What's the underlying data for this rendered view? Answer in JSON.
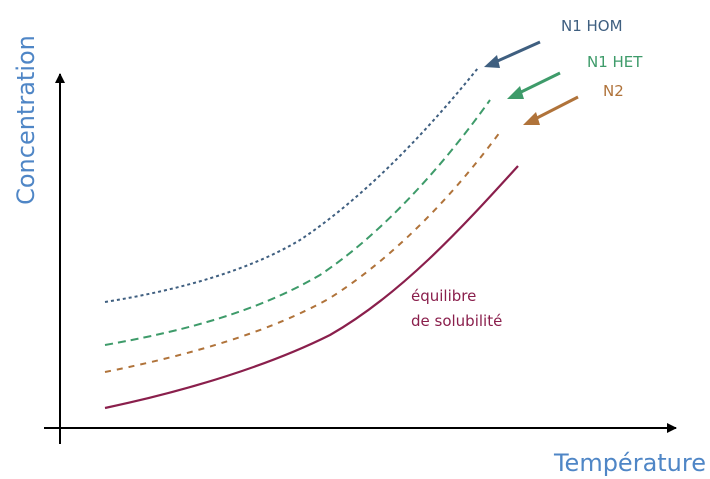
{
  "axes": {
    "y_label": "Concentration",
    "x_label": "Température"
  },
  "curves": [
    {
      "id": "n1-hom",
      "label": "N1 HOM",
      "color": "#3f5f80",
      "style": "dotted"
    },
    {
      "id": "n1-het",
      "label": "N1 HET",
      "color": "#3e9b6a",
      "style": "dashed"
    },
    {
      "id": "n2",
      "label": "N2",
      "color": "#b0733a",
      "style": "dashed"
    },
    {
      "id": "equilibre",
      "label_line1": "équilibre",
      "label_line2": "de solubilité",
      "color": "#8a1f4c",
      "style": "solid"
    }
  ]
}
